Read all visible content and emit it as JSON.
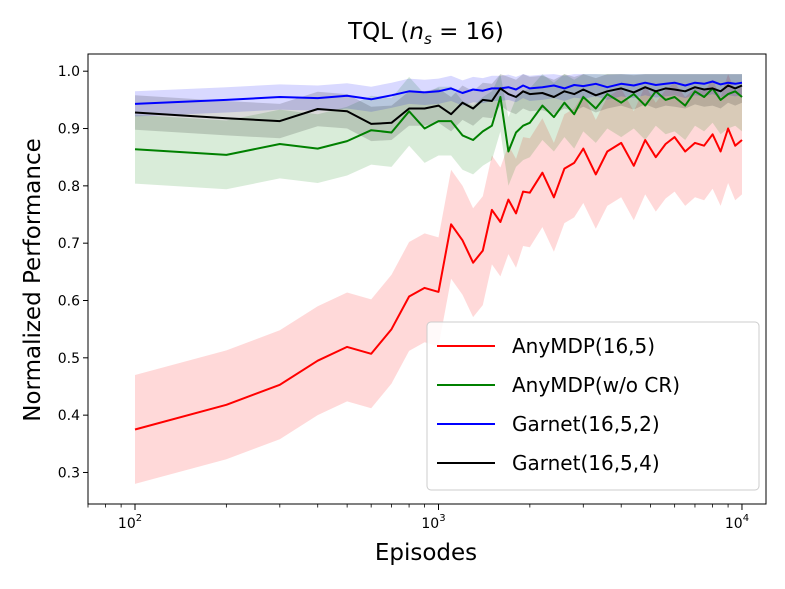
{
  "chart_data": {
    "type": "line",
    "title": "TQL (n_s = 16)",
    "title_parts": {
      "prefix": "TQL (",
      "var": "n",
      "sub": "s",
      "suffix": " = 16)"
    },
    "xlabel": "Episodes",
    "ylabel": "Normalized Performance",
    "xscale": "log",
    "xlim": [
      70,
      12000
    ],
    "ylim": [
      0.245,
      1.03
    ],
    "xticks": [
      {
        "value": 100,
        "base": "10",
        "exp": "2"
      },
      {
        "value": 1000,
        "base": "10",
        "exp": "3"
      },
      {
        "value": 10000,
        "base": "10",
        "exp": "4"
      }
    ],
    "yticks": [
      0.3,
      0.4,
      0.5,
      0.6,
      0.7,
      0.8,
      0.9,
      1.0
    ],
    "ytick_labels": [
      "0.3",
      "0.4",
      "0.5",
      "0.6",
      "0.7",
      "0.8",
      "0.9",
      "1.0"
    ],
    "legend_position": "lower-right",
    "series": [
      {
        "name": "AnyMDP(16,5)",
        "color": "#ff0000",
        "x": [
          100,
          200,
          300,
          400,
          500,
          600,
          700,
          800,
          900,
          1000,
          1100,
          1200,
          1300,
          1400,
          1500,
          1600,
          1700,
          1800,
          1900,
          2000,
          2200,
          2400,
          2600,
          2800,
          3000,
          3300,
          3600,
          4000,
          4400,
          4800,
          5200,
          5600,
          6000,
          6500,
          7000,
          7500,
          8000,
          8500,
          9000,
          9500,
          10000
        ],
        "y": [
          0.375,
          0.418,
          0.453,
          0.495,
          0.519,
          0.507,
          0.55,
          0.607,
          0.622,
          0.615,
          0.733,
          0.705,
          0.666,
          0.687,
          0.758,
          0.737,
          0.776,
          0.752,
          0.79,
          0.788,
          0.823,
          0.78,
          0.83,
          0.84,
          0.865,
          0.82,
          0.86,
          0.875,
          0.835,
          0.88,
          0.85,
          0.873,
          0.885,
          0.86,
          0.875,
          0.87,
          0.89,
          0.86,
          0.9,
          0.87,
          0.88
        ],
        "band": 0.095
      },
      {
        "name": "AnyMDP(w/o CR)",
        "color": "#008000",
        "x": [
          100,
          200,
          300,
          400,
          500,
          600,
          700,
          800,
          900,
          1000,
          1100,
          1200,
          1300,
          1400,
          1500,
          1600,
          1700,
          1800,
          1900,
          2000,
          2200,
          2400,
          2600,
          2800,
          3000,
          3300,
          3600,
          4000,
          4400,
          4800,
          5200,
          5600,
          6000,
          6500,
          7000,
          7500,
          8000,
          8500,
          9000,
          9500,
          10000
        ],
        "y": [
          0.864,
          0.854,
          0.873,
          0.865,
          0.878,
          0.897,
          0.893,
          0.93,
          0.9,
          0.913,
          0.913,
          0.888,
          0.88,
          0.895,
          0.905,
          0.955,
          0.86,
          0.893,
          0.905,
          0.91,
          0.94,
          0.92,
          0.945,
          0.925,
          0.955,
          0.935,
          0.96,
          0.945,
          0.96,
          0.94,
          0.965,
          0.95,
          0.955,
          0.94,
          0.965,
          0.955,
          0.97,
          0.95,
          0.96,
          0.965,
          0.955
        ],
        "band": 0.06
      },
      {
        "name": "Garnet(16,5,2)",
        "color": "#0000ff",
        "x": [
          100,
          200,
          300,
          400,
          500,
          600,
          700,
          800,
          900,
          1000,
          1100,
          1200,
          1300,
          1400,
          1500,
          1600,
          1700,
          1800,
          1900,
          2000,
          2200,
          2400,
          2600,
          2800,
          3000,
          3300,
          3600,
          4000,
          4400,
          4800,
          5200,
          5600,
          6000,
          6500,
          7000,
          7500,
          8000,
          8500,
          9000,
          9500,
          10000
        ],
        "y": [
          0.943,
          0.95,
          0.955,
          0.953,
          0.957,
          0.951,
          0.958,
          0.965,
          0.963,
          0.965,
          0.97,
          0.962,
          0.968,
          0.966,
          0.97,
          0.97,
          0.972,
          0.968,
          0.975,
          0.97,
          0.972,
          0.975,
          0.97,
          0.976,
          0.974,
          0.978,
          0.972,
          0.978,
          0.975,
          0.98,
          0.976,
          0.978,
          0.98,
          0.975,
          0.98,
          0.978,
          0.982,
          0.977,
          0.98,
          0.978,
          0.98
        ],
        "band": 0.022
      },
      {
        "name": "Garnet(16,5,4)",
        "color": "#000000",
        "x": [
          100,
          200,
          300,
          400,
          500,
          600,
          700,
          800,
          900,
          1000,
          1100,
          1200,
          1300,
          1400,
          1500,
          1600,
          1700,
          1800,
          1900,
          2000,
          2200,
          2400,
          2600,
          2800,
          3000,
          3300,
          3600,
          4000,
          4400,
          4800,
          5200,
          5600,
          6000,
          6500,
          7000,
          7500,
          8000,
          8500,
          9000,
          9500,
          10000
        ],
        "y": [
          0.928,
          0.918,
          0.913,
          0.934,
          0.93,
          0.908,
          0.91,
          0.935,
          0.935,
          0.94,
          0.925,
          0.945,
          0.935,
          0.95,
          0.948,
          0.97,
          0.96,
          0.955,
          0.965,
          0.96,
          0.962,
          0.955,
          0.965,
          0.96,
          0.968,
          0.958,
          0.965,
          0.97,
          0.963,
          0.972,
          0.965,
          0.97,
          0.968,
          0.965,
          0.972,
          0.968,
          0.97,
          0.965,
          0.975,
          0.97,
          0.975
        ],
        "band": 0.03
      }
    ]
  }
}
